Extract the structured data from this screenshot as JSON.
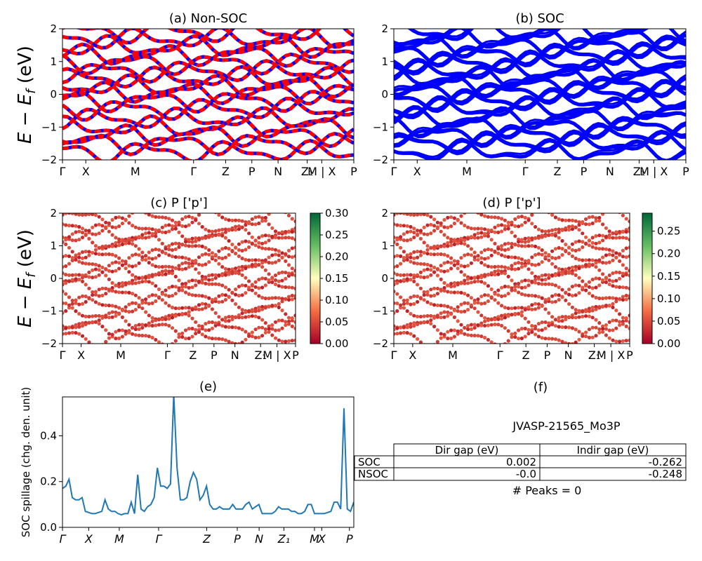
{
  "figure_title": "",
  "y_axis_label_main": "E − E_f (eV)",
  "y_axis_label_main_parts": {
    "E": "E",
    "minus": " − ",
    "Ef_E": "E",
    "Ef_sub": "f",
    "unit": " (eV)"
  },
  "kpath_labels_top": [
    "Γ",
    "X",
    "M",
    "Γ",
    "Z",
    "P",
    "N",
    "Z",
    "1",
    "M | X",
    "P"
  ],
  "chart_data": [
    {
      "id": "a",
      "type": "line",
      "title": "(a) Non-SOC",
      "ylim": [
        -2,
        2
      ],
      "yticks": [
        "2",
        "1",
        "0",
        "−1",
        "−2"
      ],
      "xticks": [
        "Γ",
        "X",
        "M",
        "Γ",
        "Z",
        "P",
        "N",
        "Z₁",
        "M | X",
        "P"
      ],
      "band_color_1": "#ff0000",
      "band_color_2": "#0000ff",
      "band_energies": [
        1.9,
        1.7,
        1.45,
        1.2,
        0.95,
        0.7,
        0.5,
        0.25,
        0.05,
        -0.2,
        -0.45,
        -0.75,
        -1.0,
        -1.25,
        -1.5,
        -1.75
      ]
    },
    {
      "id": "b",
      "type": "line",
      "title": "(b) SOC",
      "ylim": [
        -2,
        2
      ],
      "yticks": [
        "2",
        "1",
        "0",
        "−1",
        "−2"
      ],
      "xticks": [
        "Γ",
        "X",
        "M",
        "Γ",
        "Z",
        "P",
        "N",
        "Z₁",
        "M | X",
        "P"
      ],
      "band_color": "#0000ff",
      "band_energies": [
        1.9,
        1.7,
        1.45,
        1.2,
        0.95,
        0.7,
        0.5,
        0.25,
        0.05,
        -0.2,
        -0.45,
        -0.75,
        -1.0,
        -1.25,
        -1.5,
        -1.75
      ]
    },
    {
      "id": "c",
      "type": "scatter",
      "title": "(c)  P ['p']",
      "ylim": [
        -2,
        2
      ],
      "yticks": [
        "2",
        "1",
        "0",
        "−1",
        "−2"
      ],
      "xticks": [
        "Γ",
        "X",
        "M",
        "Γ",
        "Z",
        "P",
        "N",
        "Z₁",
        "M | X",
        "P"
      ],
      "colorbar_range": [
        0.0,
        0.3
      ],
      "colorbar_ticks": [
        "0.30",
        "0.25",
        "0.20",
        "0.15",
        "0.10",
        "0.05",
        "0.00"
      ],
      "colormap": "RdYlGn",
      "band_energies": [
        1.85,
        1.6,
        1.35,
        1.15,
        0.9,
        0.65,
        0.45,
        0.2,
        0.0,
        -0.25,
        -0.5,
        -0.8,
        -1.05,
        -1.3,
        -1.55,
        -1.8
      ]
    },
    {
      "id": "d",
      "type": "scatter",
      "title": "(d) P ['p']",
      "ylim": [
        -2,
        2
      ],
      "yticks": [
        "2",
        "1",
        "0",
        "−1",
        "−2"
      ],
      "xticks": [
        "Γ",
        "X",
        "M",
        "Γ",
        "Z",
        "P",
        "N",
        "Z₁",
        "M | X",
        "P"
      ],
      "colorbar_range": [
        0.0,
        0.29
      ],
      "colorbar_ticks": [
        "0.25",
        "0.20",
        "0.15",
        "0.10",
        "0.05",
        "0.00"
      ],
      "colormap": "RdYlGn",
      "band_energies": [
        1.85,
        1.6,
        1.35,
        1.15,
        0.9,
        0.65,
        0.45,
        0.2,
        0.0,
        -0.25,
        -0.5,
        -0.8,
        -1.05,
        -1.3,
        -1.55,
        -1.8
      ]
    },
    {
      "id": "e",
      "type": "line",
      "title": "(e)",
      "ylabel": "SOC spillage (chg. den. unit)",
      "ylim": [
        0,
        0.57
      ],
      "yticks": [
        "0.4",
        "0.2",
        "0.0"
      ],
      "xticks": [
        "Γ",
        "X",
        "M",
        "Γ",
        "Z",
        "P",
        "N",
        "Z₁",
        "M",
        "X",
        "P"
      ],
      "line_color": "#1f77b4",
      "values": [
        0.17,
        0.18,
        0.21,
        0.13,
        0.12,
        0.12,
        0.13,
        0.07,
        0.065,
        0.06,
        0.06,
        0.065,
        0.07,
        0.12,
        0.08,
        0.07,
        0.07,
        0.06,
        0.055,
        0.06,
        0.06,
        0.11,
        0.06,
        0.23,
        0.08,
        0.07,
        0.09,
        0.1,
        0.13,
        0.26,
        0.18,
        0.18,
        0.17,
        0.19,
        0.58,
        0.26,
        0.12,
        0.12,
        0.13,
        0.2,
        0.24,
        0.21,
        0.12,
        0.14,
        0.18,
        0.1,
        0.08,
        0.08,
        0.09,
        0.08,
        0.08,
        0.08,
        0.1,
        0.08,
        0.08,
        0.08,
        0.1,
        0.11,
        0.08,
        0.09,
        0.1,
        0.06,
        0.06,
        0.06,
        0.06,
        0.07,
        0.09,
        0.08,
        0.08,
        0.08,
        0.07,
        0.07,
        0.06,
        0.06,
        0.07,
        0.1,
        0.1,
        0.06,
        0.06,
        0.06,
        0.06,
        0.065,
        0.07,
        0.11,
        0.11,
        0.08,
        0.52,
        0.08,
        0.07,
        0.11
      ]
    }
  ],
  "panel_f": {
    "title": "(f)",
    "material": "JVASP-21565_Mo3P",
    "table": {
      "headers": [
        "",
        "Dir gap (eV)",
        "Indir gap (eV)"
      ],
      "rows": [
        [
          "SOC",
          "0.002",
          "-0.262"
        ],
        [
          "NSOC",
          "-0.0",
          "-0.248"
        ]
      ]
    },
    "peaks": "# Peaks = 0"
  }
}
